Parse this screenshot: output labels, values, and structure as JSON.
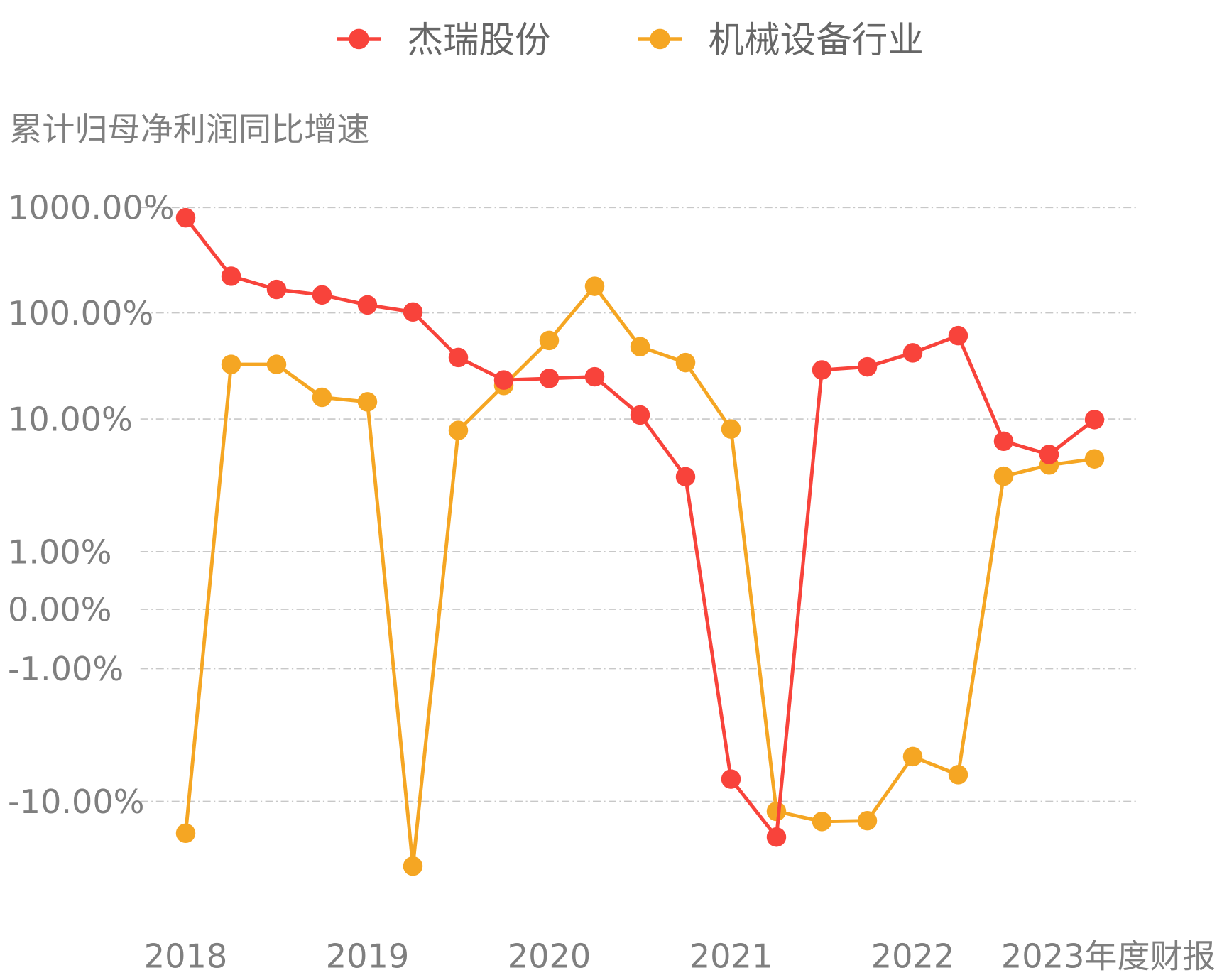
{
  "chart_data": {
    "type": "line",
    "ylabel": "累计归母净利润同比增速",
    "yscale": "symlog",
    "y_ticks": [
      {
        "value": 1000,
        "label": "1000.00%"
      },
      {
        "value": 100,
        "label": "100.00%"
      },
      {
        "value": 10,
        "label": "10.00%"
      },
      {
        "value": 1,
        "label": "1.00%"
      },
      {
        "value": 0,
        "label": "0.00%"
      },
      {
        "value": -1,
        "label": "-1.00%"
      },
      {
        "value": -10,
        "label": "-10.00%"
      }
    ],
    "grid": true,
    "legend_position": "top-center",
    "categories": [
      "2018Q1",
      "2018Q2",
      "2018Q3",
      "2018Q4",
      "2019Q1",
      "2019Q2",
      "2019Q3",
      "2019Q4",
      "2020Q1",
      "2020Q2",
      "2020Q3",
      "2020Q4",
      "2021Q1",
      "2021Q2",
      "2021Q3",
      "2021Q4",
      "2022Q1",
      "2022Q2",
      "2022Q3",
      "2022Q4",
      "2023Q4"
    ],
    "x_tick_labels": [
      {
        "index": 0,
        "label": "2018"
      },
      {
        "index": 4,
        "label": "2019"
      },
      {
        "index": 8,
        "label": "2020"
      },
      {
        "index": 12,
        "label": "2021"
      },
      {
        "index": 16,
        "label": "2022"
      },
      {
        "index": 20,
        "label": "2023年度财报"
      }
    ],
    "series": [
      {
        "name": "杰瑞股份",
        "color": "#f8433b",
        "values": [
          800,
          223,
          167,
          148,
          119,
          102,
          38,
          23.3,
          24.1,
          25,
          10.9,
          3.67,
          -6.8,
          -18.6,
          29,
          31,
          42,
          61,
          6.8,
          5.4,
          9.9
        ]
      },
      {
        "name": "机械设备行业",
        "color": "#f5a623",
        "values": [
          -17.4,
          32.7,
          32.7,
          16,
          14.5,
          -30.8,
          8.2,
          20.7,
          55,
          179,
          48,
          34,
          8.4,
          -11.9,
          -14.2,
          -14.0,
          -4.6,
          -6.3,
          3.7,
          4.5,
          5.0
        ]
      }
    ]
  }
}
